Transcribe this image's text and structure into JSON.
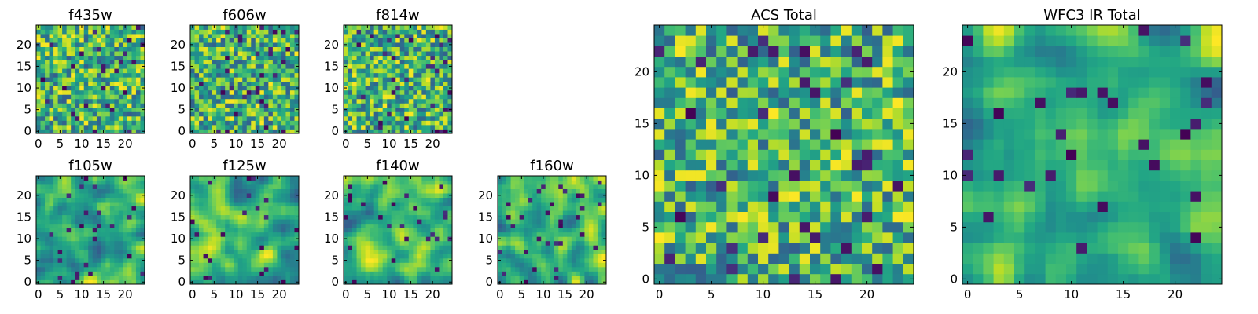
{
  "chart_data": [
    {
      "type": "heatmap",
      "title": "f435w",
      "colormap": "viridis",
      "grid_size": 25,
      "xlim": [
        0,
        24
      ],
      "ylim": [
        0,
        24
      ],
      "xticks": [
        0,
        5,
        10,
        15,
        20
      ],
      "yticks": [
        0,
        5,
        10,
        15,
        20
      ],
      "seed": 11,
      "smoothing": 0
    },
    {
      "type": "heatmap",
      "title": "f606w",
      "colormap": "viridis",
      "grid_size": 25,
      "xlim": [
        0,
        24
      ],
      "ylim": [
        0,
        24
      ],
      "xticks": [
        0,
        5,
        10,
        15,
        20
      ],
      "yticks": [
        0,
        5,
        10,
        15,
        20
      ],
      "seed": 23,
      "smoothing": 0
    },
    {
      "type": "heatmap",
      "title": "f814w",
      "colormap": "viridis",
      "grid_size": 25,
      "xlim": [
        0,
        24
      ],
      "ylim": [
        0,
        24
      ],
      "xticks": [
        0,
        5,
        10,
        15,
        20
      ],
      "yticks": [
        0,
        5,
        10,
        15,
        20
      ],
      "seed": 37,
      "smoothing": 0
    },
    {
      "type": "heatmap",
      "title": "f105w",
      "colormap": "viridis",
      "grid_size": 25,
      "xlim": [
        0,
        24
      ],
      "ylim": [
        0,
        24
      ],
      "xticks": [
        0,
        5,
        10,
        15,
        20
      ],
      "yticks": [
        0,
        5,
        10,
        15,
        20
      ],
      "seed": 41,
      "smoothing": 2
    },
    {
      "type": "heatmap",
      "title": "f125w",
      "colormap": "viridis",
      "grid_size": 25,
      "xlim": [
        0,
        24
      ],
      "ylim": [
        0,
        24
      ],
      "xticks": [
        0,
        5,
        10,
        15,
        20
      ],
      "yticks": [
        0,
        5,
        10,
        15,
        20
      ],
      "seed": 53,
      "smoothing": 2
    },
    {
      "type": "heatmap",
      "title": "f140w",
      "colormap": "viridis",
      "grid_size": 25,
      "xlim": [
        0,
        24
      ],
      "ylim": [
        0,
        24
      ],
      "xticks": [
        0,
        5,
        10,
        15,
        20
      ],
      "yticks": [
        0,
        5,
        10,
        15,
        20
      ],
      "seed": 67,
      "smoothing": 2
    },
    {
      "type": "heatmap",
      "title": "f160w",
      "colormap": "viridis",
      "grid_size": 25,
      "xlim": [
        0,
        24
      ],
      "ylim": [
        0,
        24
      ],
      "xticks": [
        0,
        5,
        10,
        15,
        20
      ],
      "yticks": [
        0,
        5,
        10,
        15,
        20
      ],
      "seed": 79,
      "smoothing": 2
    },
    {
      "type": "heatmap",
      "title": "ACS Total",
      "colormap": "viridis",
      "grid_size": 25,
      "xlim": [
        0,
        24
      ],
      "ylim": [
        0,
        24
      ],
      "xticks": [
        0,
        5,
        10,
        15,
        20
      ],
      "yticks": [
        0,
        5,
        10,
        15,
        20
      ],
      "seed": 97,
      "smoothing": 0
    },
    {
      "type": "heatmap",
      "title": "WFC3 IR Total",
      "colormap": "viridis",
      "grid_size": 25,
      "xlim": [
        0,
        24
      ],
      "ylim": [
        0,
        24
      ],
      "xticks": [
        0,
        5,
        10,
        15,
        20
      ],
      "yticks": [
        0,
        5,
        10,
        15,
        20
      ],
      "seed": 113,
      "smoothing": 2
    }
  ]
}
